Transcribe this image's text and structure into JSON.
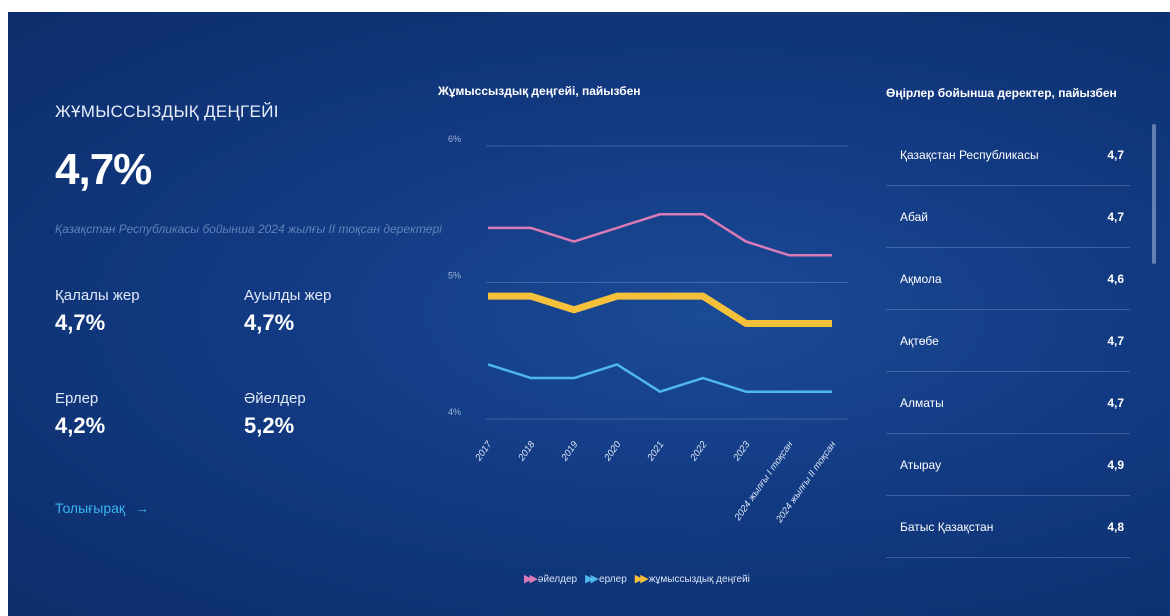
{
  "summary": {
    "title": "ЖҰМЫССЫЗДЫҚ ДЕҢГЕЙІ",
    "value": "4,7%",
    "subtitle": "Қазақстан Республикасы бойынша 2024 жылғы ІІ тоқсан деректері",
    "stats": [
      {
        "label": "Қалалы жер",
        "value": "4,7%"
      },
      {
        "label": "Ауылды жер",
        "value": "4,7%"
      },
      {
        "label": "Ерлер",
        "value": "4,2%"
      },
      {
        "label": "Әйелдер",
        "value": "5,2%"
      }
    ],
    "more_link": "Толығырақ",
    "more_arrow": "→"
  },
  "chart_data": {
    "type": "line",
    "title": "Жұмыссыздық деңгейі, пайызбен",
    "categories": [
      "2017",
      "2018",
      "2019",
      "2020",
      "2021",
      "2022",
      "2023",
      "2024 жылғы I тоқсан",
      "2024 жылғы II тоқсан"
    ],
    "y_ticks": [
      "6%",
      "5%",
      "4%"
    ],
    "ylim": [
      4,
      6
    ],
    "grid": true,
    "legend_position": "bottom",
    "series": [
      {
        "name": "әйелдер",
        "color": "#d97bb6",
        "values": [
          5.4,
          5.4,
          5.3,
          5.4,
          5.5,
          5.5,
          5.3,
          5.2,
          5.2
        ]
      },
      {
        "name": "ерлер",
        "color": "#4fb6ee",
        "values": [
          4.4,
          4.3,
          4.3,
          4.4,
          4.2,
          4.3,
          4.2,
          4.2,
          4.2
        ]
      },
      {
        "name": "жұмыссыздық деңгейі",
        "color": "#f5c13a",
        "values": [
          4.9,
          4.9,
          4.8,
          4.9,
          4.9,
          4.9,
          4.7,
          4.7,
          4.7
        ]
      }
    ]
  },
  "regions": {
    "title": "Өңірлер бойынша деректер, пайызбен",
    "items": [
      {
        "name": "Қазақстан Республикасы",
        "value": "4,7"
      },
      {
        "name": "Абай",
        "value": "4,7"
      },
      {
        "name": "Ақмола",
        "value": "4,6"
      },
      {
        "name": "Ақтөбе",
        "value": "4,7"
      },
      {
        "name": "Алматы",
        "value": "4,7"
      },
      {
        "name": "Атырау",
        "value": "4,9"
      },
      {
        "name": "Батыс Қазақстан",
        "value": "4,8"
      }
    ]
  }
}
